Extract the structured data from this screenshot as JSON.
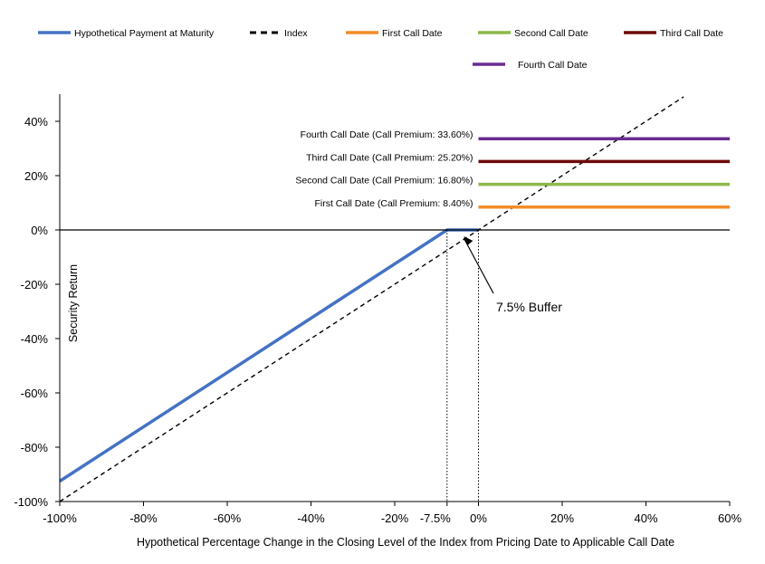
{
  "chart_data": {
    "type": "line",
    "xlabel": "Hypothetical Percentage Change in the Closing Level of the Index from Pricing Date to Applicable Call Date",
    "ylabel": "Security Return",
    "xlim": [
      -100,
      60
    ],
    "ylim": [
      -100,
      50
    ],
    "x_ticks": [
      -100,
      -80,
      -60,
      -40,
      -20,
      -7.5,
      0,
      20,
      40,
      60
    ],
    "x_tick_labels": [
      "-100%",
      "-80%",
      "-60%",
      "-40%",
      "-20%",
      "-7.5%",
      "0%",
      "20%",
      "40%",
      "60%"
    ],
    "y_ticks": [
      -100,
      -80,
      -60,
      -40,
      -20,
      0,
      20,
      40
    ],
    "y_tick_labels": [
      "-100%",
      "-80%",
      "-60%",
      "-40%",
      "-20%",
      "0%",
      "20%",
      "40%"
    ],
    "grid": false,
    "legend_position": "top",
    "series": [
      {
        "name": "Hypothetical Payment at Maturity",
        "color": "#4472C4",
        "style": "solid",
        "x": [
          -100,
          -7.5,
          0
        ],
        "y": [
          -92.5,
          0,
          0
        ]
      },
      {
        "name": "Index",
        "color": "#000000",
        "style": "dashed",
        "x": [
          -100,
          49
        ],
        "y": [
          -100,
          49
        ]
      },
      {
        "name": "First Call Date",
        "color": "#F28C28",
        "style": "solid",
        "x": [
          0,
          60
        ],
        "y": [
          8.4,
          8.4
        ]
      },
      {
        "name": "Second Call Date",
        "color": "#8DB84A",
        "style": "solid",
        "x": [
          0,
          60
        ],
        "y": [
          16.8,
          16.8
        ]
      },
      {
        "name": "Third Call Date",
        "color": "#6E0A0A",
        "style": "solid",
        "x": [
          0,
          60
        ],
        "y": [
          25.2,
          25.2
        ]
      },
      {
        "name": "Fourth Call Date",
        "color": "#6A2C91",
        "style": "solid",
        "x": [
          0,
          60
        ],
        "y": [
          33.6,
          33.6
        ]
      }
    ],
    "annotations": [
      {
        "text": "Fourth Call Date (Call Premium: 33.60%)",
        "y": 33.6
      },
      {
        "text": "Third Call Date (Call Premium: 25.20%)",
        "y": 25.2
      },
      {
        "text": "Second Call Date (Call Premium: 16.80%)",
        "y": 16.8
      },
      {
        "text": "First Call Date (Call Premium: 8.40%)",
        "y": 8.4
      }
    ],
    "buffer_label": "7.5% Buffer",
    "reference_lines_x": [
      -7.5,
      0
    ]
  }
}
